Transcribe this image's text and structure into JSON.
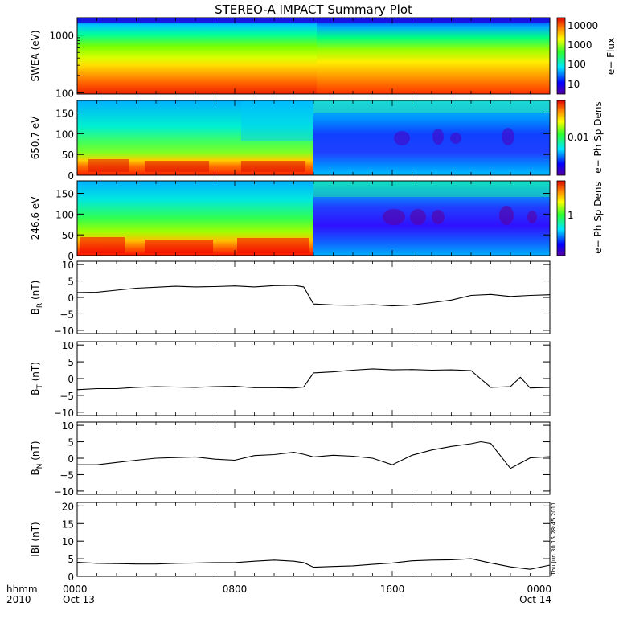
{
  "chart_data": {
    "title": "STEREO-A IMPACT Summary Plot",
    "time_axis": {
      "row1_label": "hhmm",
      "row2_label": "2010",
      "ticks": [
        {
          "hour": 0,
          "label": "0000",
          "date": "Oct 13"
        },
        {
          "hour": 8,
          "label": "0800",
          "date": ""
        },
        {
          "hour": 16,
          "label": "1600",
          "date": ""
        },
        {
          "hour": 24,
          "label": "0000",
          "date": "Oct 14"
        }
      ],
      "range_hours": [
        0,
        24
      ]
    },
    "timestamp": "Thu Jun 30 15:28:45 2011",
    "panels": [
      {
        "type": "heatmap",
        "ylabel": "SWEA (eV)",
        "yscale": "log",
        "yticks": [
          "100",
          "1000"
        ],
        "ylim": [
          95,
          2000
        ],
        "colorbar": {
          "label": "e− Flux",
          "ticks": [
            "10",
            "100",
            "1000",
            "10000"
          ]
        }
      },
      {
        "type": "heatmap",
        "ylabel": "650.7 eV",
        "yticks": [
          "0",
          "50",
          "100",
          "150"
        ],
        "ylim": [
          0,
          180
        ],
        "colorbar": {
          "label": "e− Ph Sp Dens",
          "ticks": [
            "0.01"
          ]
        }
      },
      {
        "type": "heatmap",
        "ylabel": "246.6 eV",
        "yticks": [
          "0",
          "50",
          "100",
          "150"
        ],
        "ylim": [
          0,
          180
        ],
        "colorbar": {
          "label": "e− Ph Sp Dens",
          "ticks": [
            "1"
          ]
        }
      },
      {
        "type": "line",
        "ylabel": "B_R (nT)",
        "ylabel_main": "B",
        "ylabel_sub": "R",
        "ylabel_unit": " (nT)",
        "yticks": [
          "−10",
          "−5",
          "0",
          "5",
          "10"
        ],
        "ylim": [
          -11,
          11
        ],
        "x": [
          0,
          1,
          2,
          3,
          4,
          5,
          6,
          7,
          8,
          9,
          10,
          11,
          11.5,
          12,
          13,
          14,
          15,
          16,
          17,
          18,
          19,
          20,
          21,
          22,
          23,
          24
        ],
        "y": [
          1.5,
          1.6,
          2.2,
          2.8,
          3.1,
          3.4,
          3.2,
          3.3,
          3.5,
          3.2,
          3.6,
          3.7,
          3.2,
          -2.0,
          -2.3,
          -2.4,
          -2.2,
          -2.6,
          -2.3,
          -1.6,
          -0.8,
          0.6,
          0.9,
          0.3,
          0.6,
          0.8
        ]
      },
      {
        "type": "line",
        "ylabel": "B_T (nT)",
        "ylabel_main": "B",
        "ylabel_sub": "T",
        "ylabel_unit": " (nT)",
        "yticks": [
          "−10",
          "−5",
          "0",
          "5",
          "10"
        ],
        "ylim": [
          -11,
          11
        ],
        "x": [
          0,
          1,
          2,
          3,
          4,
          5,
          6,
          7,
          8,
          9,
          10,
          11,
          11.5,
          12,
          13,
          14,
          15,
          16,
          17,
          18,
          19,
          20,
          21,
          22,
          22.5,
          23,
          24
        ],
        "y": [
          -3.3,
          -3.0,
          -3.0,
          -2.6,
          -2.4,
          -2.5,
          -2.6,
          -2.4,
          -2.3,
          -2.7,
          -2.7,
          -2.8,
          -2.5,
          1.7,
          2.0,
          2.5,
          2.9,
          2.6,
          2.7,
          2.5,
          2.6,
          2.4,
          -2.6,
          -2.4,
          0.4,
          -2.8,
          -2.6
        ]
      },
      {
        "type": "line",
        "ylabel": "B_N (nT)",
        "ylabel_main": "B",
        "ylabel_sub": "N",
        "ylabel_unit": " (nT)",
        "yticks": [
          "−10",
          "−5",
          "0",
          "5",
          "10"
        ],
        "ylim": [
          -11,
          11
        ],
        "x": [
          0,
          1,
          2,
          3,
          4,
          5,
          6,
          7,
          8,
          9,
          10,
          11,
          11.5,
          12,
          13,
          14,
          15,
          16,
          17,
          18,
          19,
          20,
          20.5,
          21,
          22,
          23,
          24
        ],
        "y": [
          -2.0,
          -2.0,
          -1.3,
          -0.6,
          0.0,
          0.2,
          0.4,
          -0.3,
          -0.6,
          0.8,
          1.1,
          1.8,
          1.2,
          0.4,
          0.9,
          0.6,
          0.0,
          -2.0,
          0.9,
          2.5,
          3.6,
          4.4,
          5.0,
          4.5,
          -3.1,
          0.1,
          0.5
        ]
      },
      {
        "type": "line",
        "ylabel": "|B| (nT)",
        "ylabel_main": "IBI",
        "ylabel_sub": "",
        "ylabel_unit": " (nT)",
        "yticks": [
          "0",
          "5",
          "10",
          "15",
          "20"
        ],
        "ylim": [
          0,
          21
        ],
        "x": [
          0,
          1,
          2,
          3,
          4,
          5,
          6,
          7,
          8,
          9,
          10,
          11,
          11.5,
          12,
          13,
          14,
          15,
          16,
          17,
          18,
          19,
          20,
          21,
          22,
          23,
          24
        ],
        "y": [
          4.0,
          3.7,
          3.6,
          3.5,
          3.5,
          3.7,
          3.8,
          3.9,
          3.9,
          4.3,
          4.6,
          4.3,
          3.9,
          2.6,
          2.8,
          3.0,
          3.4,
          3.8,
          4.4,
          4.6,
          4.7,
          5.0,
          3.8,
          2.7,
          2.0,
          3.2
        ]
      }
    ]
  }
}
